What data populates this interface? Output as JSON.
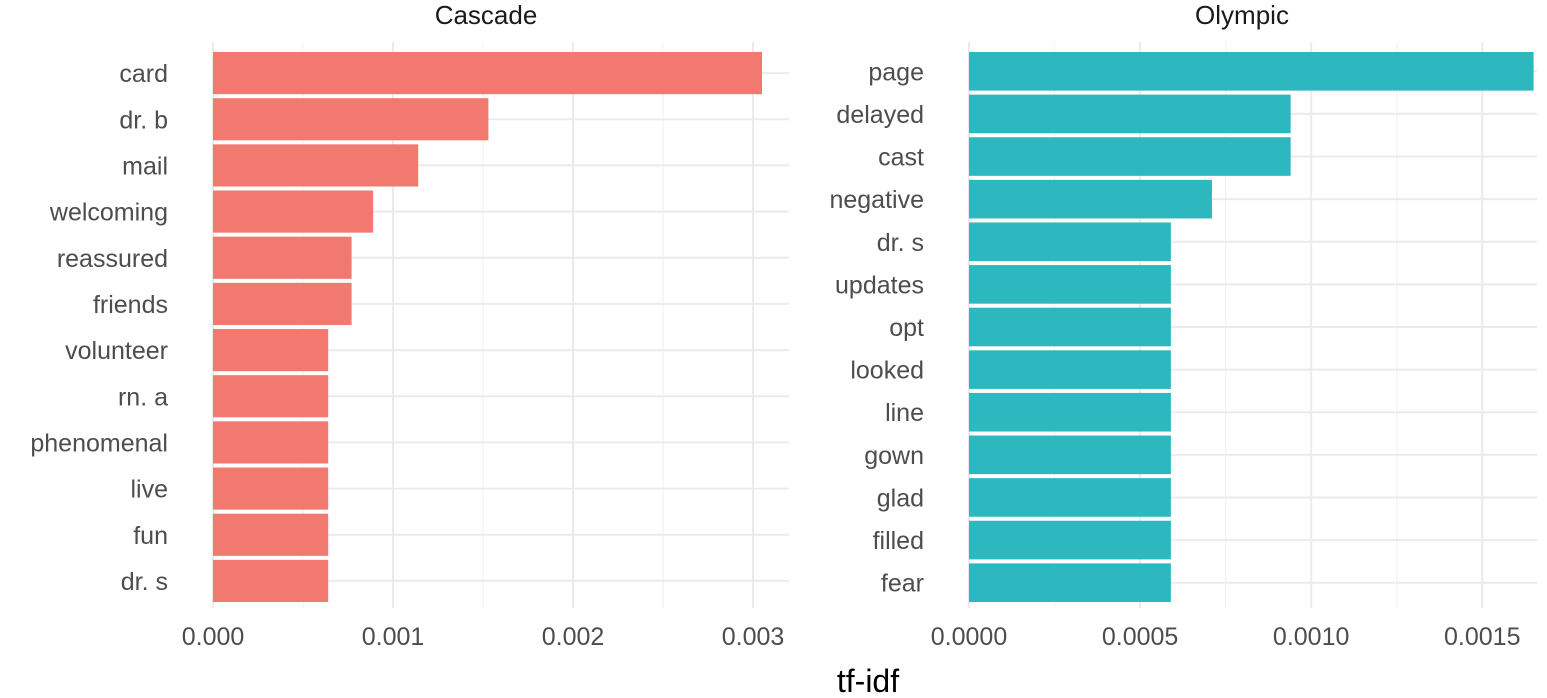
{
  "chart_data": {
    "type": "bar",
    "orientation": "horizontal",
    "xlabel": "tf-idf",
    "grid": true,
    "facets": [
      {
        "title": "Cascade",
        "color": "#F27970",
        "xlim": [
          0,
          0.0032
        ],
        "ticks": [
          "0.000",
          "0.001",
          "0.002",
          "0.003"
        ],
        "tick_values": [
          0,
          0.001,
          0.002,
          0.003
        ],
        "categories": [
          "card",
          "dr. b",
          "mail",
          "welcoming",
          "reassured",
          "friends",
          "volunteer",
          "rn. a",
          "phenomenal",
          "live",
          "fun",
          "dr. s"
        ],
        "values": [
          0.00305,
          0.00153,
          0.00114,
          0.00089,
          0.00077,
          0.00077,
          0.00064,
          0.00064,
          0.00064,
          0.00064,
          0.00064,
          0.00064
        ]
      },
      {
        "title": "Olympic",
        "color": "#2DB8BF",
        "xlim": [
          0,
          0.00166
        ],
        "ticks": [
          "0.0000",
          "0.0005",
          "0.0010",
          "0.0015"
        ],
        "tick_values": [
          0,
          0.0005,
          0.001,
          0.0015
        ],
        "categories": [
          "page",
          "delayed",
          "cast",
          "negative",
          "dr. s",
          "updates",
          "opt",
          "looked",
          "line",
          "gown",
          "glad",
          "filled",
          "fear"
        ],
        "values": [
          0.00165,
          0.00094,
          0.00094,
          0.00071,
          0.00059,
          0.00059,
          0.00059,
          0.00059,
          0.00059,
          0.00059,
          0.00059,
          0.00059,
          0.00059
        ]
      }
    ]
  }
}
